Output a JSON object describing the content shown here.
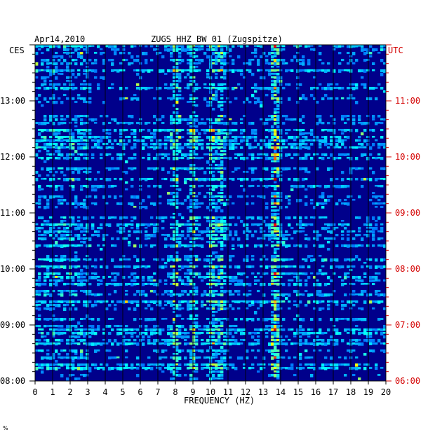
{
  "header": {
    "date": "Apr14,2010",
    "station": "ZUGS HHZ BW 01 (Zugspitze)",
    "left_zone": "CES",
    "right_zone": "UTC",
    "corner_mark": "%"
  },
  "colors": {
    "background": "#00008b",
    "accent_utc": "#d40000"
  },
  "chart_data": {
    "type": "heatmap",
    "title": "ZUGS HHZ BW 01 (Zugspitze)",
    "xlabel": "FREQUENCY (HZ)",
    "xlim": [
      0,
      20
    ],
    "x_ticks": [
      "0",
      "1",
      "2",
      "3",
      "4",
      "5",
      "6",
      "7",
      "8",
      "9",
      "10",
      "11",
      "12",
      "13",
      "14",
      "15",
      "16",
      "17",
      "18",
      "19",
      "20"
    ],
    "left_time_ticks": [
      {
        "value": 8.0,
        "label": "08:00"
      },
      {
        "value": 9.0,
        "label": "09:00"
      },
      {
        "value": 10.0,
        "label": "10:00"
      },
      {
        "value": 11.0,
        "label": "11:00"
      },
      {
        "value": 12.0,
        "label": "12:00"
      },
      {
        "value": 13.0,
        "label": "13:00"
      }
    ],
    "right_time_ticks": [
      {
        "value": 8.0,
        "label": "06:00"
      },
      {
        "value": 9.0,
        "label": "07:00"
      },
      {
        "value": 10.0,
        "label": "08:00"
      },
      {
        "value": 11.0,
        "label": "09:00"
      },
      {
        "value": 12.0,
        "label": "10:00"
      },
      {
        "value": 13.0,
        "label": "11:00"
      }
    ],
    "ylim": [
      8.0,
      14.0
    ],
    "dominant_lines_hz": [
      8.0,
      9.0,
      10.1,
      10.6,
      13.7
    ],
    "colormap": "jet"
  }
}
